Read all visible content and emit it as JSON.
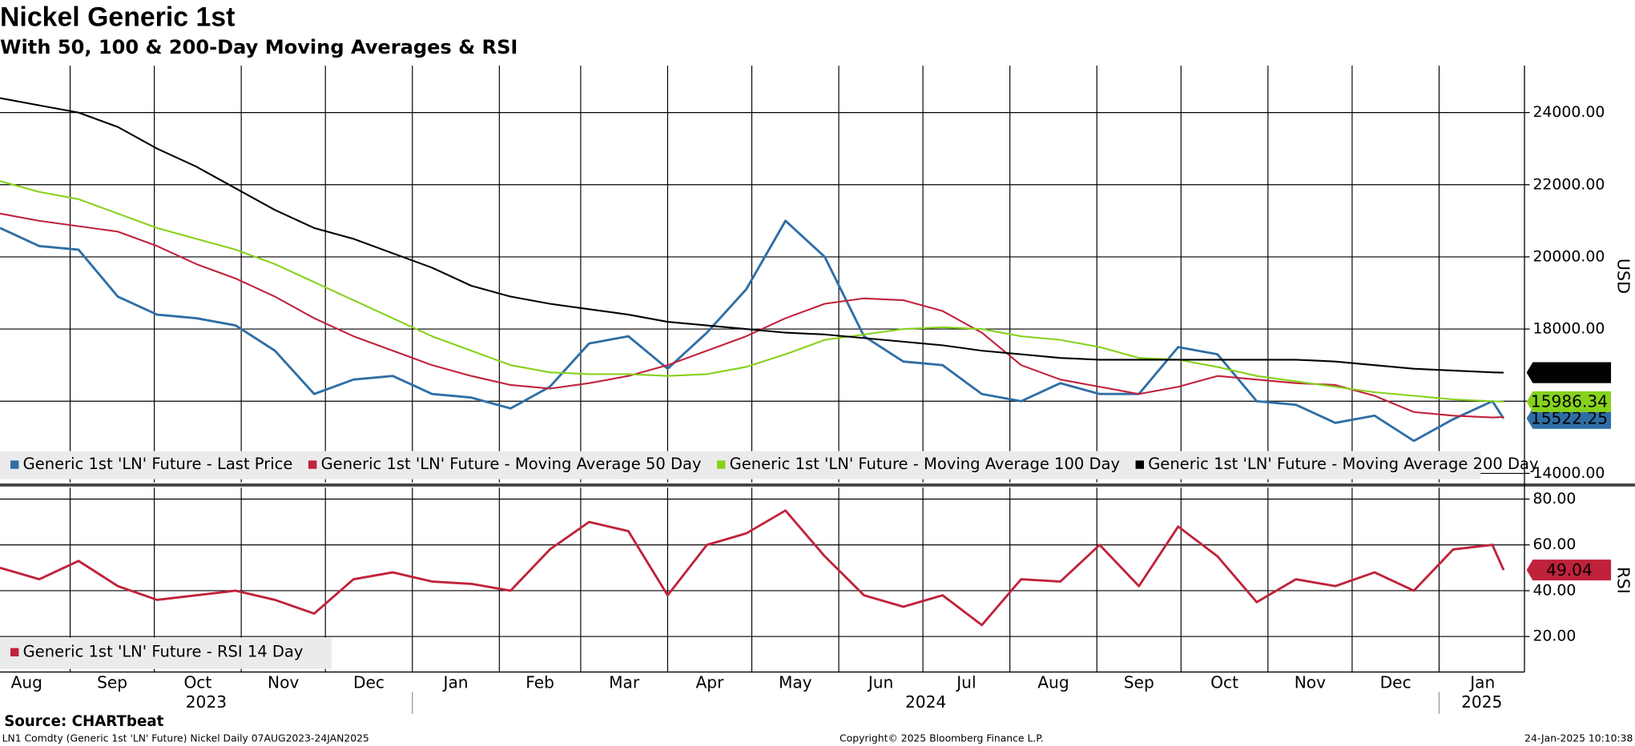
{
  "chart_data": [
    {
      "type": "line",
      "title": "Nickel Generic 1st",
      "subtitle": "With 50, 100 & 200-Day Moving Averages & RSI",
      "ylabel": "USD",
      "xlim": [
        "2023-08-07",
        "2025-01-24"
      ],
      "x": [
        "2023-08-07",
        "2023-08-21",
        "2023-09-04",
        "2023-09-18",
        "2023-10-02",
        "2023-10-16",
        "2023-10-30",
        "2023-11-13",
        "2023-11-27",
        "2023-12-11",
        "2023-12-25",
        "2024-01-08",
        "2024-01-22",
        "2024-02-05",
        "2024-02-19",
        "2024-03-04",
        "2024-03-18",
        "2024-04-01",
        "2024-04-15",
        "2024-04-29",
        "2024-05-13",
        "2024-05-27",
        "2024-06-10",
        "2024-06-24",
        "2024-07-08",
        "2024-07-22",
        "2024-08-05",
        "2024-08-19",
        "2024-09-02",
        "2024-09-16",
        "2024-09-30",
        "2024-10-14",
        "2024-10-28",
        "2024-11-11",
        "2024-11-25",
        "2024-12-09",
        "2024-12-23",
        "2025-01-06",
        "2025-01-20",
        "2025-01-24"
      ],
      "ylim": [
        13750,
        25300
      ],
      "yticks": [
        {
          "value": 14000,
          "label": "14000.00"
        },
        {
          "value": 16000,
          "label": "16000.00"
        },
        {
          "value": 18000,
          "label": "18000.00"
        },
        {
          "value": 20000,
          "label": "20000.00"
        },
        {
          "value": 22000,
          "label": "22000.00"
        },
        {
          "value": 24000,
          "label": "24000.00"
        }
      ],
      "grid": true,
      "series": [
        {
          "name": "Generic 1st 'LN' Future - Last Price",
          "color": "#2f6ea5",
          "show_last": true,
          "tag_text": "#ffffff",
          "values": [
            20800,
            20300,
            20200,
            18900,
            18400,
            18300,
            18100,
            17400,
            16200,
            16600,
            16700,
            16200,
            16100,
            15800,
            16400,
            17600,
            17800,
            16900,
            17900,
            19100,
            21000,
            20000,
            17800,
            17100,
            17000,
            16200,
            16000,
            16500,
            16200,
            16200,
            17500,
            17300,
            16000,
            15900,
            15400,
            15600,
            14900,
            15500,
            16000,
            15522.25
          ]
        },
        {
          "name": "Generic 1st 'LN' Future - Moving Average 50 Day",
          "color": "#c0223b",
          "show_last": false,
          "values": [
            21200,
            21000,
            20850,
            20700,
            20300,
            19800,
            19400,
            18900,
            18300,
            17800,
            17400,
            17000,
            16700,
            16450,
            16350,
            16500,
            16700,
            17000,
            17400,
            17800,
            18300,
            18700,
            18850,
            18800,
            18500,
            17900,
            17000,
            16600,
            16400,
            16200,
            16400,
            16700,
            16600,
            16500,
            16450,
            16150,
            15700,
            15600,
            15550,
            15560
          ]
        },
        {
          "name": "Generic 1st 'LN' Future - Moving Average 100 Day",
          "color": "#86d11c",
          "show_last": true,
          "tag_text": "#000000",
          "values": [
            22100,
            21800,
            21600,
            21200,
            20800,
            20500,
            20200,
            19800,
            19300,
            18800,
            18300,
            17800,
            17400,
            17000,
            16800,
            16750,
            16750,
            16700,
            16750,
            16950,
            17300,
            17700,
            17850,
            18000,
            18050,
            18000,
            17800,
            17700,
            17500,
            17200,
            17150,
            16950,
            16700,
            16550,
            16400,
            16250,
            16150,
            16050,
            16000,
            15986.34
          ]
        },
        {
          "name": "Generic 1st 'LN' Future - Moving Average 200 Day",
          "color": "#000000",
          "show_last": true,
          "tag_text": "#ffffff",
          "values": [
            24400,
            24200,
            24000,
            23600,
            23000,
            22500,
            21900,
            21300,
            20800,
            20500,
            20100,
            19700,
            19200,
            18900,
            18700,
            18550,
            18400,
            18200,
            18100,
            18000,
            17900,
            17850,
            17750,
            17650,
            17550,
            17400,
            17300,
            17200,
            17150,
            17150,
            17150,
            17150,
            17150,
            17150,
            17100,
            17000,
            16900,
            16850,
            16800,
            16791.62
          ]
        }
      ]
    },
    {
      "type": "line",
      "ylabel": "RSI",
      "xlim": [
        "2023-08-07",
        "2025-01-24"
      ],
      "x": [
        "2023-08-07",
        "2023-08-21",
        "2023-09-04",
        "2023-09-18",
        "2023-10-02",
        "2023-10-16",
        "2023-10-30",
        "2023-11-13",
        "2023-11-27",
        "2023-12-11",
        "2023-12-25",
        "2024-01-08",
        "2024-01-22",
        "2024-02-05",
        "2024-02-19",
        "2024-03-04",
        "2024-03-18",
        "2024-04-01",
        "2024-04-15",
        "2024-04-29",
        "2024-05-13",
        "2024-05-27",
        "2024-06-10",
        "2024-06-24",
        "2024-07-08",
        "2024-07-22",
        "2024-08-05",
        "2024-08-19",
        "2024-09-02",
        "2024-09-16",
        "2024-09-30",
        "2024-10-14",
        "2024-10-28",
        "2024-11-11",
        "2024-11-25",
        "2024-12-09",
        "2024-12-23",
        "2025-01-06",
        "2025-01-20",
        "2025-01-24"
      ],
      "ylim": [
        4.5,
        85
      ],
      "yticks": [
        {
          "value": 20,
          "label": "20.00"
        },
        {
          "value": 40,
          "label": "40.00"
        },
        {
          "value": 60,
          "label": "60.00"
        },
        {
          "value": 80,
          "label": "80.00"
        }
      ],
      "grid": true,
      "xticks": [
        {
          "value": "2023-08",
          "label": "Aug"
        },
        {
          "value": "2023-09",
          "label": "Sep"
        },
        {
          "value": "2023-10",
          "label": "Oct"
        },
        {
          "value": "2023-11",
          "label": "Nov"
        },
        {
          "value": "2023-12",
          "label": "Dec"
        },
        {
          "value": "2024-01",
          "label": "Jan"
        },
        {
          "value": "2024-02",
          "label": "Feb"
        },
        {
          "value": "2024-03",
          "label": "Mar"
        },
        {
          "value": "2024-04",
          "label": "Apr"
        },
        {
          "value": "2024-05",
          "label": "May"
        },
        {
          "value": "2024-06",
          "label": "Jun"
        },
        {
          "value": "2024-07",
          "label": "Jul"
        },
        {
          "value": "2024-08",
          "label": "Aug"
        },
        {
          "value": "2024-09",
          "label": "Sep"
        },
        {
          "value": "2024-10",
          "label": "Oct"
        },
        {
          "value": "2024-11",
          "label": "Nov"
        },
        {
          "value": "2024-12",
          "label": "Dec"
        },
        {
          "value": "2025-01",
          "label": "Jan"
        }
      ],
      "years": [
        "2023",
        "2024",
        "2025"
      ],
      "series": [
        {
          "name": "Generic 1st 'LN' Future - RSI 14 Day",
          "color": "#c0223b",
          "show_last": true,
          "tag_text": "#ffffff",
          "values": [
            50,
            45,
            53,
            42,
            36,
            38,
            40,
            36,
            30,
            45,
            48,
            44,
            43,
            40,
            58,
            70,
            66,
            38,
            60,
            65,
            75,
            55,
            38,
            33,
            38,
            25,
            45,
            44,
            60,
            42,
            68,
            55,
            35,
            45,
            42,
            48,
            40,
            58,
            60,
            49.04
          ]
        }
      ]
    }
  ],
  "footer": {
    "source": "Source: CHARTbeat",
    "description": "LN1 Comdty (Generic 1st 'LN' Future) Nickel  Daily 07AUG2023-24JAN2025",
    "copyright": "Copyright© 2025 Bloomberg Finance L.P.",
    "timestamp": "24-Jan-2025 10:10:38"
  }
}
